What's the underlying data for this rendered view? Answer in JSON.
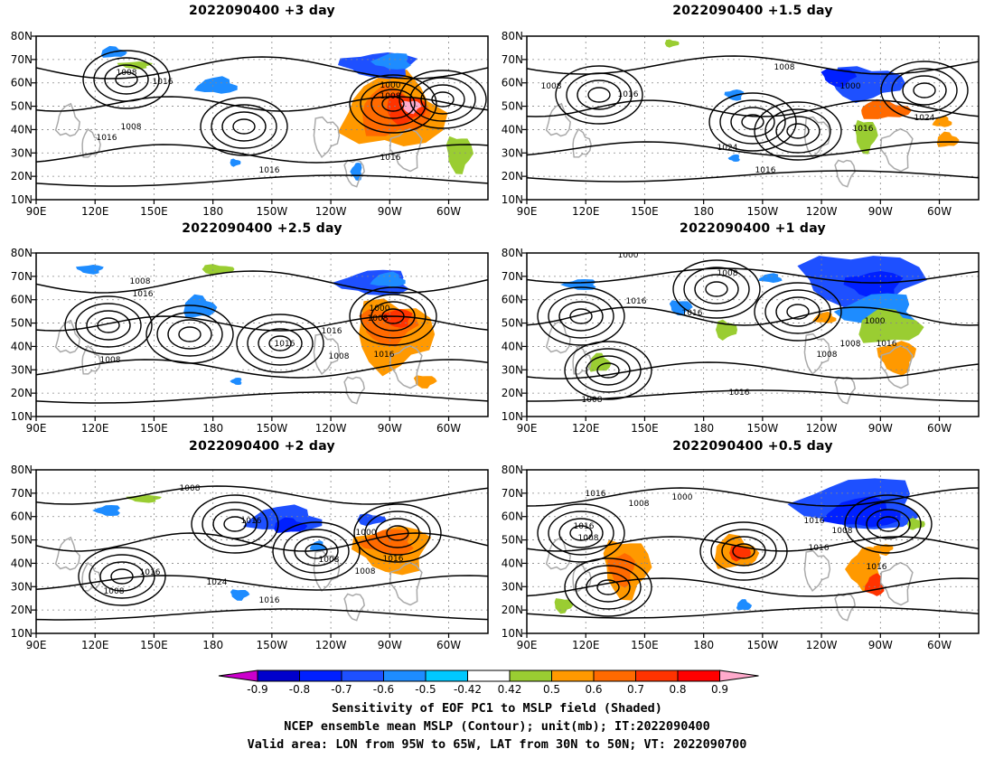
{
  "chart_data": {
    "type": "contour map",
    "panels": [
      {
        "title": "2022090400  +3 day",
        "contour_labels": [
          "1008",
          "1016",
          "1008",
          "1016",
          "1000",
          "1008",
          "1016",
          "1016"
        ]
      },
      {
        "title": "2022090400  +1.5 day",
        "contour_labels": [
          "1008",
          "1008",
          "1016",
          "1000",
          "1024",
          "1016",
          "1024",
          "1016"
        ]
      },
      {
        "title": "2022090400  +2.5 day",
        "contour_labels": [
          "1008",
          "1016",
          "1008",
          "1016",
          "1000",
          "1008",
          "1016",
          "1008",
          "1016"
        ]
      },
      {
        "title": "2022090400  +1 day",
        "contour_labels": [
          "1000",
          "1008",
          "1016",
          "1016",
          "1000",
          "1008",
          "1016",
          "1008",
          "1016",
          "1008"
        ]
      },
      {
        "title": "2022090400  +2 day",
        "contour_labels": [
          "1008",
          "1016",
          "1016",
          "1008",
          "1024",
          "1016",
          "1000",
          "1008",
          "1008",
          "1016"
        ]
      },
      {
        "title": "2022090400  +0.5 day",
        "contour_labels": [
          "1016",
          "1008",
          "1016",
          "1008",
          "1000",
          "1016",
          "1008",
          "1016",
          "1016"
        ]
      }
    ],
    "x_ticks": [
      "90E",
      "120E",
      "150E",
      "180",
      "150W",
      "120W",
      "90W",
      "60W"
    ],
    "y_ticks": [
      "10N",
      "20N",
      "30N",
      "40N",
      "50N",
      "60N",
      "70N",
      "80N"
    ],
    "xlim": [
      "90E",
      "40W"
    ],
    "ylim": [
      "10N",
      "80N"
    ],
    "colorbar": {
      "levels": [
        "-0.9",
        "-0.8",
        "-0.7",
        "-0.6",
        "-0.5",
        "-0.42",
        "0.42",
        "0.5",
        "0.6",
        "0.7",
        "0.8",
        "0.9"
      ],
      "colors": [
        "#cc00cc",
        "#0000cc",
        "#0020ff",
        "#1e50ff",
        "#1e8cff",
        "#00c8ff",
        "#ffffff",
        "#9acd32",
        "#ff9900",
        "#ff6a00",
        "#ff3300",
        "#ff0000",
        "#ffaacc"
      ]
    },
    "contour_color": "#000000",
    "coast_color": "#aaaaaa",
    "grid": true
  },
  "caption": {
    "line1": "Sensitivity of EOF PC1 to MSLP field (Shaded)",
    "line2": "NCEP ensemble mean MSLP (Contour); unit(mb); IT:2022090400",
    "line3": "Valid area: LON from 95W to 65W, LAT from 30N to 50N; VT: 2022090700"
  }
}
